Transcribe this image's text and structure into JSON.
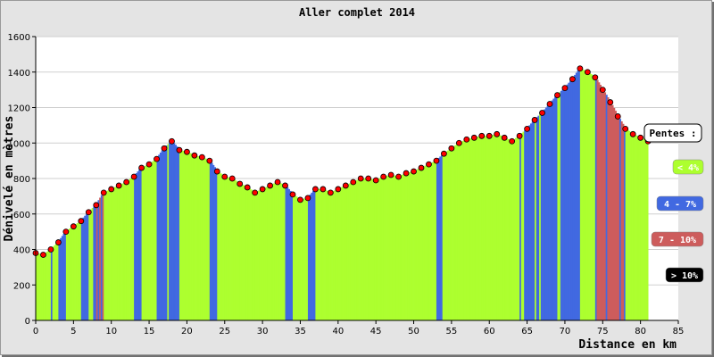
{
  "chart_data": {
    "type": "area",
    "title": "Aller complet 2014",
    "xlabel": "Distance en km",
    "ylabel": "Dénivelé en mètres",
    "xlim": [
      0,
      85
    ],
    "ylim": [
      0,
      1600
    ],
    "xticks": [
      0,
      5,
      10,
      15,
      20,
      25,
      30,
      35,
      40,
      45,
      50,
      55,
      60,
      65,
      70,
      75,
      80,
      85
    ],
    "yticks": [
      0,
      200,
      400,
      600,
      800,
      1000,
      1200,
      1400,
      1600
    ],
    "grid": "horizontal",
    "legend_position": "right",
    "legend": {
      "title": "Pentes :",
      "items": [
        {
          "label": "< 4%",
          "color": "#adff2f"
        },
        {
          "label": "4 - 7%",
          "color": "#4169e1"
        },
        {
          "label": "7 - 10%",
          "color": "#cd5c5c"
        },
        {
          "label": "> 10%",
          "color": "#000000"
        }
      ]
    },
    "colors": {
      "flat": "#adff2f",
      "moderate": "#4169e1",
      "steep": "#cd5c5c",
      "very_steep": "#000000",
      "point": "#ff0000"
    },
    "series": [
      {
        "x": [
          0,
          1,
          2,
          3,
          4,
          5,
          6,
          7,
          8,
          9,
          10,
          11,
          12,
          13,
          14,
          15,
          16,
          17,
          18,
          19,
          20,
          21,
          22,
          23,
          24,
          25,
          26,
          27,
          28,
          29,
          30,
          31,
          32,
          33,
          34,
          35,
          36,
          37,
          38,
          39,
          40,
          41,
          42,
          43,
          44,
          45,
          46,
          47,
          48,
          49,
          50,
          51,
          52,
          53,
          54,
          55,
          56,
          57,
          58,
          59,
          60,
          61,
          62,
          63,
          64,
          65,
          66,
          67,
          68,
          69,
          70,
          71,
          72,
          73,
          74,
          75,
          76,
          77,
          78,
          79,
          80,
          81
        ],
        "y": [
          380,
          370,
          400,
          440,
          500,
          530,
          560,
          610,
          650,
          720,
          740,
          760,
          780,
          810,
          860,
          880,
          910,
          970,
          1010,
          960,
          950,
          930,
          920,
          900,
          840,
          810,
          800,
          770,
          750,
          720,
          740,
          760,
          780,
          760,
          710,
          680,
          690,
          740,
          740,
          720,
          740,
          760,
          780,
          800,
          800,
          790,
          810,
          820,
          810,
          830,
          840,
          860,
          880,
          900,
          940,
          970,
          1000,
          1020,
          1030,
          1040,
          1040,
          1050,
          1030,
          1010,
          1040,
          1080,
          1130,
          1170,
          1220,
          1270,
          1310,
          1360,
          1420,
          1400,
          1370,
          1300,
          1230,
          1150,
          1080,
          1050,
          1030,
          1010
        ]
      }
    ]
  }
}
